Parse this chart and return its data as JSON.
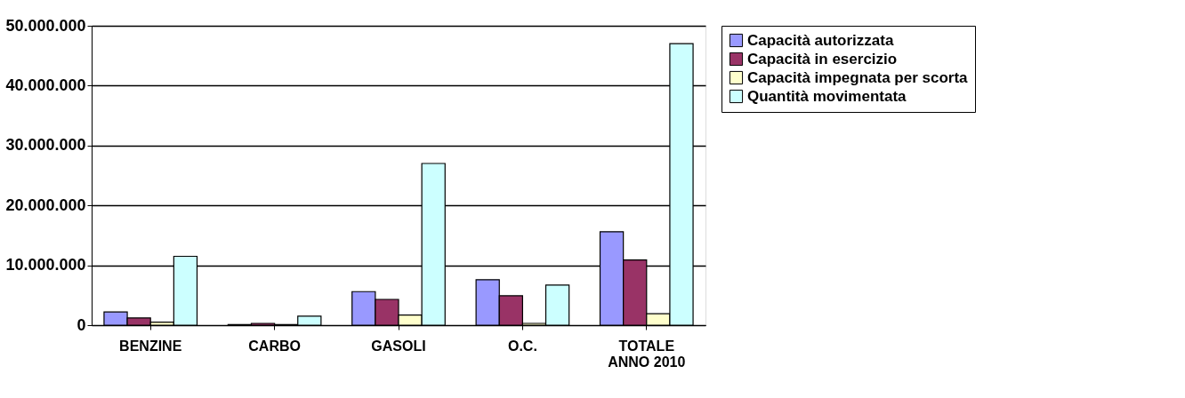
{
  "chart_data": {
    "type": "bar",
    "categories": [
      "BENZINE",
      "CARBO",
      "GASOLI",
      "O.C.",
      "TOTALE\nANNO 2010"
    ],
    "series": [
      {
        "name": "Capacità autorizzata",
        "color": "#9999ff",
        "values": [
          2200000,
          100000,
          5600000,
          7600000,
          15600000
        ]
      },
      {
        "name": "Capacità in esercizio",
        "color": "#993366",
        "values": [
          1200000,
          300000,
          4300000,
          4900000,
          10900000
        ]
      },
      {
        "name": "Capacità impegnata per scorta",
        "color": "#ffffcc",
        "values": [
          500000,
          100000,
          1700000,
          300000,
          1900000
        ]
      },
      {
        "name": "Quantità movimentata",
        "color": "#ccffff",
        "values": [
          11500000,
          1500000,
          27000000,
          6700000,
          47000000
        ]
      }
    ],
    "ylim": [
      0,
      50000000
    ],
    "yticks": [
      {
        "value": 0,
        "label": "0"
      },
      {
        "value": 10000000,
        "label": "10.000.000"
      },
      {
        "value": 20000000,
        "label": "20.000.000"
      },
      {
        "value": 30000000,
        "label": "30.000.000"
      },
      {
        "value": 40000000,
        "label": "40.000.000"
      },
      {
        "value": 50000000,
        "label": "50.000.000"
      }
    ],
    "grid": "y",
    "legend": "right"
  }
}
